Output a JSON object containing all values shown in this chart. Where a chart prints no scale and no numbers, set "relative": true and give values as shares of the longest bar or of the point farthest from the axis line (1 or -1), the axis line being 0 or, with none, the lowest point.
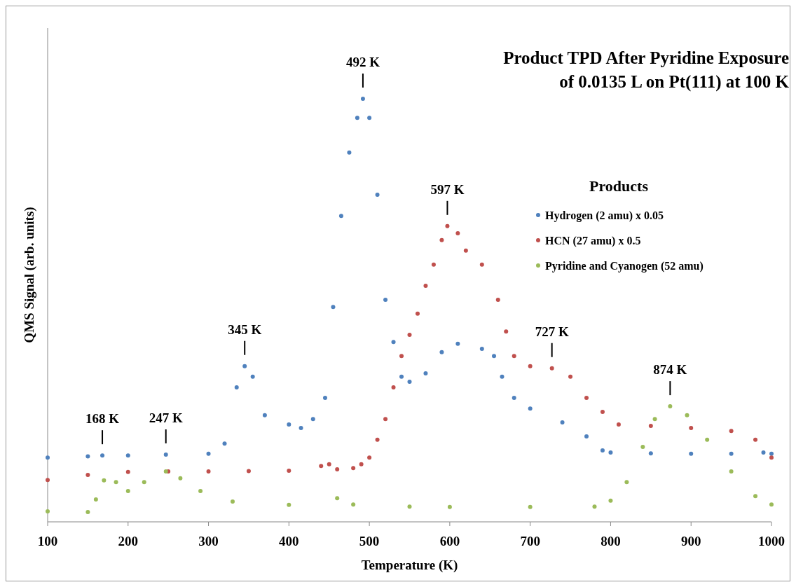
{
  "chart_data": {
    "type": "scatter",
    "relative": true,
    "title": "Product TPD After Pyridine Exposure\nof 0.0135 L on Pt(111) at 100 K",
    "xlabel": "Temperature (K)",
    "ylabel": "QMS Signal (arb. units)",
    "legend_title": "Products",
    "legend": "right",
    "marker": "circle",
    "grid": false,
    "xlim": [
      100,
      1000
    ],
    "xticks": [
      100,
      200,
      300,
      400,
      500,
      600,
      700,
      800,
      900,
      1000
    ],
    "series": [
      {
        "name": "Hydrogen (2 amu) x 0.05",
        "color": "#4f81bd",
        "x": [
          100,
          150,
          168,
          200,
          247,
          300,
          320,
          335,
          345,
          355,
          370,
          400,
          415,
          430,
          445,
          455,
          465,
          475,
          485,
          492,
          500,
          510,
          520,
          530,
          540,
          550,
          570,
          590,
          610,
          640,
          655,
          665,
          680,
          700,
          740,
          770,
          790,
          800,
          850,
          900,
          950,
          990,
          1000
        ],
        "values": [
          0.152,
          0.155,
          0.157,
          0.157,
          0.159,
          0.161,
          0.185,
          0.318,
          0.368,
          0.343,
          0.252,
          0.23,
          0.222,
          0.243,
          0.293,
          0.508,
          0.723,
          0.873,
          0.955,
          1.0,
          0.955,
          0.773,
          0.525,
          0.425,
          0.343,
          0.331,
          0.351,
          0.401,
          0.421,
          0.409,
          0.392,
          0.343,
          0.293,
          0.268,
          0.235,
          0.202,
          0.169,
          0.164,
          0.162,
          0.161,
          0.161,
          0.164,
          0.161
        ]
      },
      {
        "name": "HCN (27 amu) x 0.5",
        "color": "#c0504d",
        "x": [
          100,
          150,
          200,
          250,
          300,
          350,
          400,
          440,
          450,
          460,
          480,
          490,
          500,
          510,
          520,
          530,
          540,
          550,
          560,
          570,
          580,
          590,
          597,
          610,
          620,
          640,
          660,
          670,
          680,
          700,
          727,
          750,
          770,
          790,
          810,
          850,
          900,
          950,
          980,
          1000
        ],
        "values": [
          0.099,
          0.111,
          0.118,
          0.119,
          0.119,
          0.12,
          0.121,
          0.132,
          0.136,
          0.124,
          0.127,
          0.136,
          0.152,
          0.194,
          0.243,
          0.318,
          0.392,
          0.442,
          0.492,
          0.558,
          0.608,
          0.666,
          0.699,
          0.682,
          0.641,
          0.608,
          0.525,
          0.45,
          0.392,
          0.368,
          0.363,
          0.343,
          0.293,
          0.26,
          0.23,
          0.227,
          0.222,
          0.215,
          0.194,
          0.152
        ]
      },
      {
        "name": "Pyridine and Cyanogen (52 amu)",
        "color": "#9bbb59",
        "x": [
          100,
          150,
          160,
          170,
          185,
          200,
          220,
          247,
          265,
          290,
          330,
          400,
          460,
          480,
          550,
          600,
          700,
          780,
          800,
          820,
          840,
          855,
          874,
          895,
          920,
          950,
          980,
          1000
        ],
        "values": [
          0.025,
          0.023,
          0.053,
          0.098,
          0.094,
          0.073,
          0.094,
          0.119,
          0.103,
          0.073,
          0.048,
          0.04,
          0.056,
          0.041,
          0.036,
          0.035,
          0.035,
          0.036,
          0.05,
          0.094,
          0.177,
          0.243,
          0.273,
          0.252,
          0.194,
          0.119,
          0.061,
          0.041
        ]
      }
    ],
    "annotations": [
      {
        "text": "168 K",
        "x": 168,
        "y": 0.157
      },
      {
        "text": "247 K",
        "x": 247,
        "y": 0.159
      },
      {
        "text": "345 K",
        "x": 345,
        "y": 0.368
      },
      {
        "text": "492 K",
        "x": 492,
        "y": 1.0
      },
      {
        "text": "597 K",
        "x": 597,
        "y": 0.699
      },
      {
        "text": "727 K",
        "x": 727,
        "y": 0.363
      },
      {
        "text": "874 K",
        "x": 874,
        "y": 0.273
      }
    ]
  }
}
